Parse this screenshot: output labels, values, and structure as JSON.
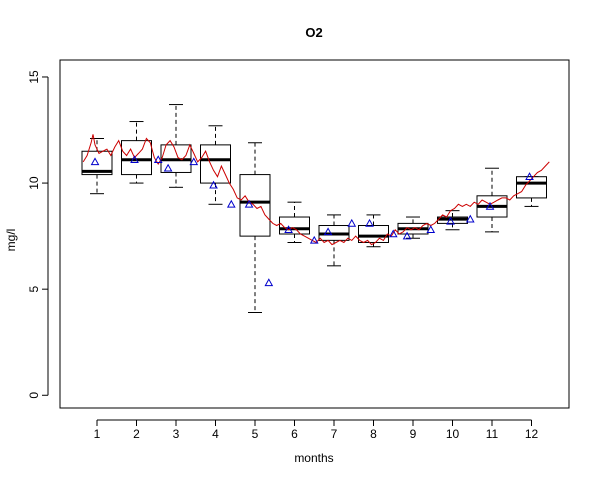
{
  "chart_data": {
    "type": "box",
    "title": "O2",
    "xlabel": "months",
    "ylabel": "mg/l",
    "categories": [
      "1",
      "2",
      "3",
      "4",
      "5",
      "6",
      "7",
      "8",
      "9",
      "10",
      "11",
      "12"
    ],
    "ylim": [
      -0.6,
      15.8
    ],
    "yticks": [
      0,
      5,
      10,
      15
    ],
    "ytick_labels": [
      "0",
      "5",
      "10",
      "15"
    ],
    "boxes": [
      {
        "month": "1",
        "whisker_low": 9.5,
        "q1": 10.4,
        "median": 10.55,
        "q3": 11.5,
        "whisker_high": 12.1
      },
      {
        "month": "2",
        "whisker_low": 10.0,
        "q1": 10.4,
        "median": 11.1,
        "q3": 12.0,
        "whisker_high": 12.9
      },
      {
        "month": "3",
        "whisker_low": 9.8,
        "q1": 10.5,
        "median": 11.1,
        "q3": 11.8,
        "whisker_high": 13.7
      },
      {
        "month": "4",
        "whisker_low": 9.0,
        "q1": 10.0,
        "median": 11.1,
        "q3": 11.8,
        "whisker_high": 12.7
      },
      {
        "month": "5",
        "whisker_low": 3.9,
        "q1": 7.5,
        "median": 9.1,
        "q3": 10.4,
        "whisker_high": 11.9
      },
      {
        "month": "6",
        "whisker_low": 7.2,
        "q1": 7.6,
        "median": 7.85,
        "q3": 8.4,
        "whisker_high": 9.1
      },
      {
        "month": "7",
        "whisker_low": 6.1,
        "q1": 7.3,
        "median": 7.6,
        "q3": 8.0,
        "whisker_high": 8.5
      },
      {
        "month": "8",
        "whisker_low": 7.0,
        "q1": 7.2,
        "median": 7.5,
        "q3": 8.0,
        "whisker_high": 8.5
      },
      {
        "month": "9",
        "whisker_low": 7.4,
        "q1": 7.6,
        "median": 7.85,
        "q3": 8.1,
        "whisker_high": 8.4
      },
      {
        "month": "10",
        "whisker_low": 7.8,
        "q1": 8.1,
        "median": 8.3,
        "q3": 8.4,
        "whisker_high": 8.7
      },
      {
        "month": "11",
        "whisker_low": 7.7,
        "q1": 8.4,
        "median": 8.9,
        "q3": 9.4,
        "whisker_high": 10.7
      },
      {
        "month": "12",
        "whisker_low": 8.9,
        "q1": 9.3,
        "median": 10.0,
        "q3": 10.3,
        "whisker_high": 10.3
      }
    ],
    "means": [
      {
        "x": 0.95,
        "y": 11.0
      },
      {
        "x": 1.95,
        "y": 11.1
      },
      {
        "x": 2.55,
        "y": 11.1
      },
      {
        "x": 2.8,
        "y": 10.7
      },
      {
        "x": 3.45,
        "y": 11.0
      },
      {
        "x": 3.95,
        "y": 9.9
      },
      {
        "x": 4.4,
        "y": 9.0
      },
      {
        "x": 4.85,
        "y": 9.0
      },
      {
        "x": 5.35,
        "y": 5.3
      },
      {
        "x": 5.85,
        "y": 7.8
      },
      {
        "x": 6.5,
        "y": 7.3
      },
      {
        "x": 6.85,
        "y": 7.7
      },
      {
        "x": 7.45,
        "y": 8.1
      },
      {
        "x": 7.9,
        "y": 8.1
      },
      {
        "x": 8.5,
        "y": 7.6
      },
      {
        "x": 8.85,
        "y": 7.5
      },
      {
        "x": 9.45,
        "y": 7.8
      },
      {
        "x": 9.95,
        "y": 8.2
      },
      {
        "x": 10.45,
        "y": 8.3
      },
      {
        "x": 10.95,
        "y": 8.9
      },
      {
        "x": 11.95,
        "y": 10.3
      }
    ],
    "line": {
      "color": "#cc0000",
      "x": [
        0.65,
        0.75,
        0.85,
        0.9,
        0.95,
        1.05,
        1.15,
        1.25,
        1.35,
        1.45,
        1.55,
        1.65,
        1.75,
        1.85,
        1.95,
        2.05,
        2.15,
        2.25,
        2.35,
        2.45,
        2.55,
        2.65,
        2.75,
        2.85,
        2.95,
        3.05,
        3.15,
        3.25,
        3.35,
        3.45,
        3.55,
        3.65,
        3.75,
        3.85,
        3.95,
        4.05,
        4.15,
        4.25,
        4.35,
        4.45,
        4.55,
        4.65,
        4.75,
        4.85,
        4.95,
        5.05,
        5.15,
        5.25,
        5.35,
        5.45,
        5.55,
        5.65,
        5.75,
        5.85,
        5.95,
        6.05,
        6.15,
        6.25,
        6.35,
        6.45,
        6.55,
        6.65,
        6.75,
        6.85,
        6.95,
        7.05,
        7.15,
        7.25,
        7.35,
        7.45,
        7.55,
        7.65,
        7.75,
        7.85,
        7.95,
        8.05,
        8.15,
        8.25,
        8.35,
        8.45,
        8.55,
        8.65,
        8.75,
        8.85,
        8.95,
        9.05,
        9.15,
        9.25,
        9.35,
        9.45,
        9.55,
        9.65,
        9.75,
        9.85,
        9.95,
        10.05,
        10.15,
        10.25,
        10.35,
        10.45,
        10.55,
        10.65,
        10.75,
        10.85,
        10.95,
        11.05,
        11.15,
        11.25,
        11.35,
        11.45,
        11.55,
        11.65,
        11.75,
        11.85,
        11.95,
        12.05,
        12.15,
        12.25,
        12.35,
        12.45
      ],
      "y": [
        11.0,
        11.3,
        11.9,
        12.3,
        11.8,
        11.4,
        11.5,
        11.6,
        11.3,
        11.7,
        12.0,
        11.5,
        11.3,
        11.6,
        11.2,
        11.4,
        11.6,
        12.1,
        11.9,
        11.2,
        10.9,
        11.2,
        11.8,
        12.0,
        11.7,
        11.2,
        11.1,
        11.3,
        11.8,
        11.4,
        11.0,
        11.2,
        11.5,
        11.0,
        10.6,
        10.3,
        10.8,
        10.4,
        10.0,
        9.7,
        9.3,
        9.2,
        9.4,
        9.1,
        9.0,
        8.8,
        8.9,
        8.5,
        8.3,
        8.1,
        8.0,
        8.1,
        7.9,
        7.8,
        7.9,
        7.8,
        7.6,
        7.5,
        7.4,
        7.3,
        7.2,
        7.4,
        7.2,
        7.3,
        7.1,
        7.2,
        7.3,
        7.2,
        7.4,
        7.3,
        7.5,
        7.3,
        7.2,
        7.3,
        7.1,
        7.2,
        7.4,
        7.3,
        7.6,
        7.5,
        7.8,
        7.6,
        7.7,
        7.9,
        7.8,
        7.9,
        7.8,
        8.0,
        8.1,
        8.0,
        8.1,
        8.3,
        8.5,
        8.4,
        8.7,
        8.8,
        9.0,
        8.9,
        9.0,
        8.9,
        9.1,
        9.0,
        9.2,
        9.1,
        9.0,
        9.1,
        9.2,
        9.3,
        9.3,
        9.2,
        9.4,
        9.5,
        9.6,
        9.9,
        10.1,
        10.3,
        10.5,
        10.6,
        10.8,
        11.0
      ]
    },
    "grid": false,
    "legend": "none",
    "box_color": "#000000",
    "mean_marker_color": "#0000cc"
  }
}
